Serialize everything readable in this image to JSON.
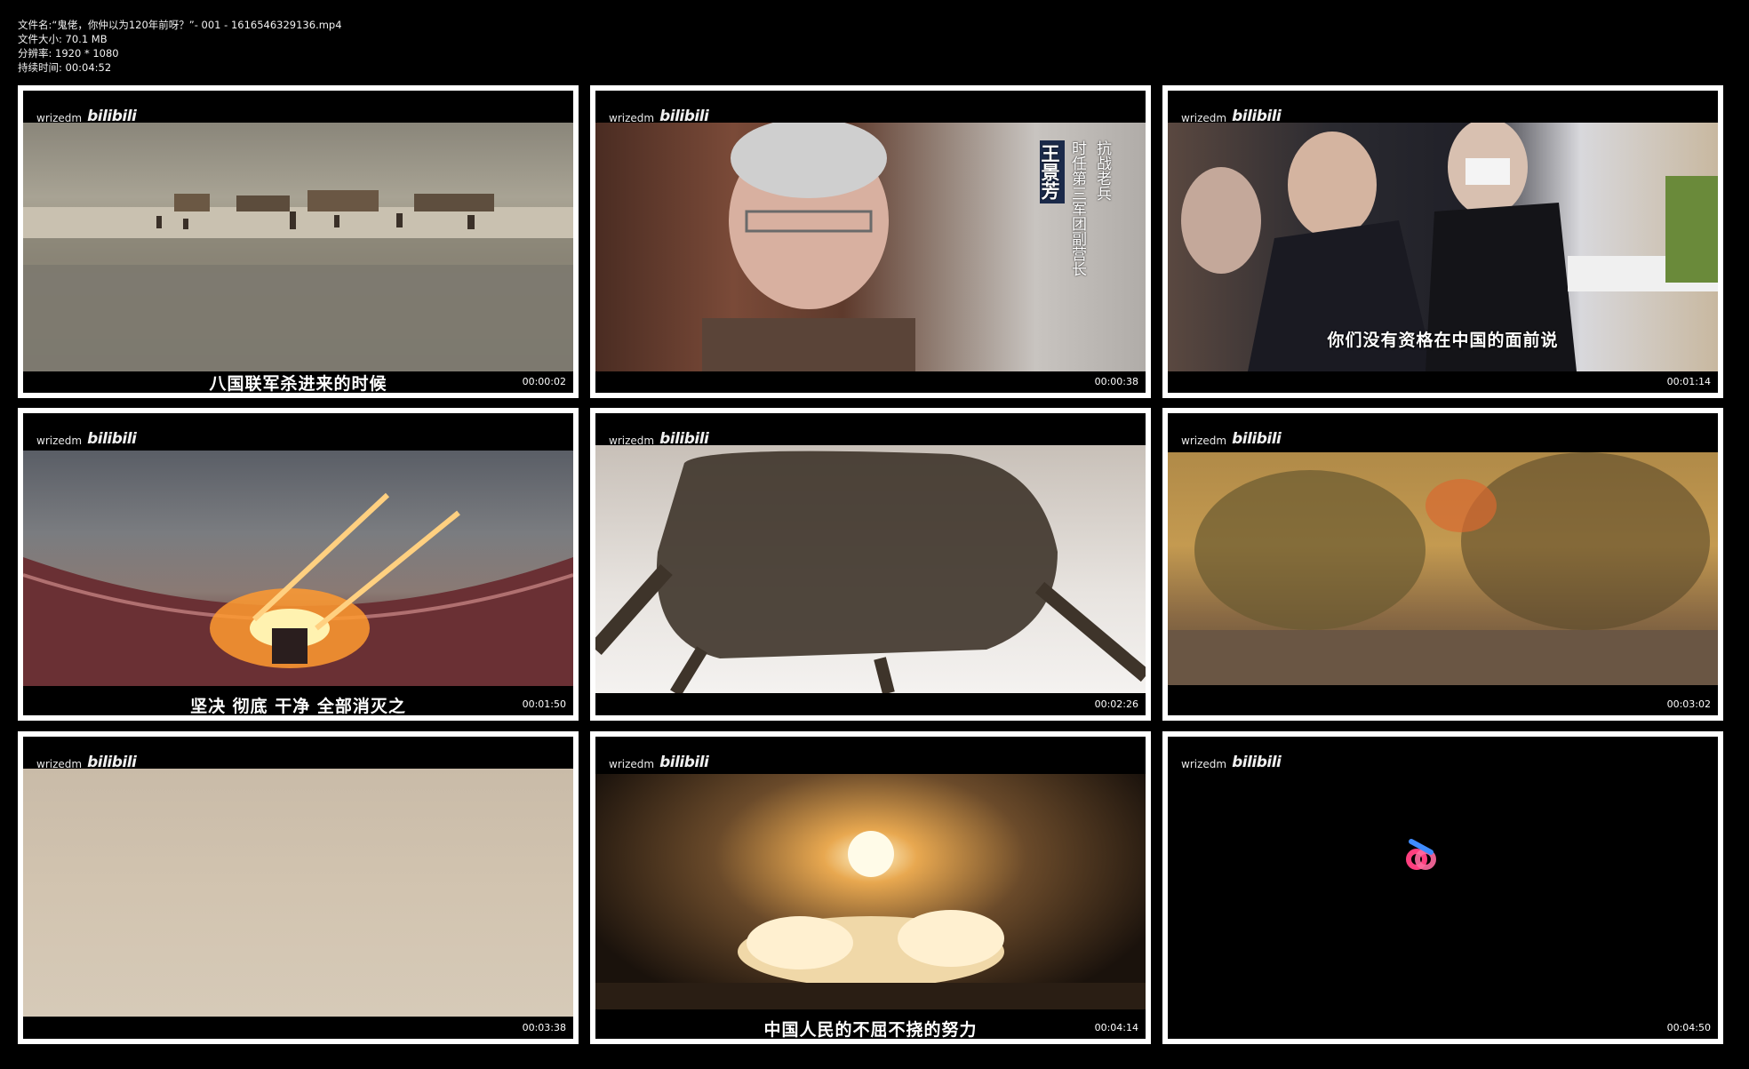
{
  "header": {
    "filename": "文件名:“鬼佬，你仲以为120年前呀？”- 001 - 1616546329136.mp4",
    "filesize": "文件大小: 70.1 MB",
    "resolution": "分辨率: 1920 * 1080",
    "duration": "持续时间: 00:04:52"
  },
  "watermark": {
    "user": "wrizedm",
    "logo": "bilibili"
  },
  "thumbs": [
    {
      "time": "00:00:02",
      "subtitle": "八国联军杀进来的时候"
    },
    {
      "time": "00:00:38",
      "subtitle": "",
      "caption_name": "王景芳",
      "caption_role1": "抗战老兵",
      "caption_role2": "时任第三军团副营长"
    },
    {
      "time": "00:01:14",
      "subtitle": "你们没有资格在中国的面前说"
    },
    {
      "time": "00:01:50",
      "subtitle": "坚决 彻底 干净 全部消灭之"
    },
    {
      "time": "00:02:26",
      "subtitle": ""
    },
    {
      "time": "00:03:02",
      "subtitle": ""
    },
    {
      "time": "00:03:38",
      "subtitle": ""
    },
    {
      "time": "00:04:14",
      "subtitle": "中国人民的不屈不挠的努力"
    },
    {
      "time": "00:04:50",
      "subtitle": ""
    }
  ],
  "colors": {
    "border": "#ffffff",
    "background": "#000000",
    "logo_accent": "#ff4f8b"
  },
  "icons": {
    "center_logo": "bilibili-loading-icon"
  }
}
